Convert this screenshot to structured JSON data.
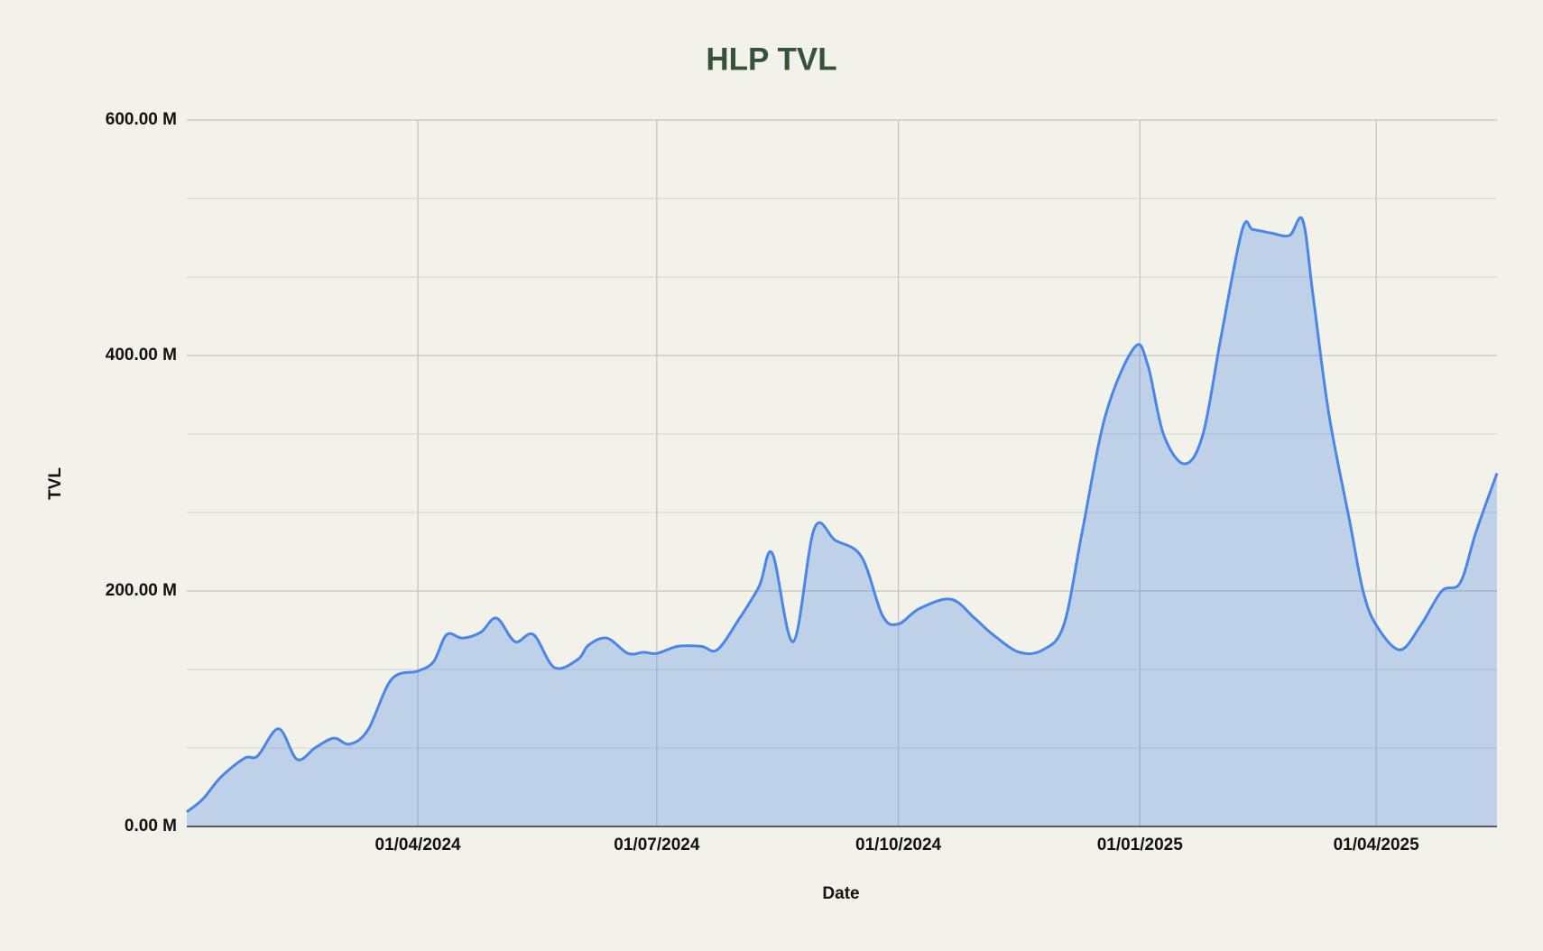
{
  "chart_data": {
    "type": "area",
    "title": "HLP TVL",
    "x_label": "Date",
    "y_label": "TVL",
    "color": "#4a86e8",
    "grid": true,
    "minor_grid_per_interval": 2,
    "xlim": [
      "2024-01-04",
      "2025-05-17"
    ],
    "xticks": [
      {
        "value": "2024-04-01",
        "label": "01/04/2024"
      },
      {
        "value": "2024-07-01",
        "label": "01/07/2024"
      },
      {
        "value": "2024-10-01",
        "label": "01/10/2024"
      },
      {
        "value": "2025-01-01",
        "label": "01/01/2025"
      },
      {
        "value": "2025-04-01",
        "label": "01/04/2025"
      }
    ],
    "ylim": [
      0,
      600000000
    ],
    "yticks": [
      {
        "value": 0,
        "label": "0.00 M"
      },
      {
        "value": 200000000,
        "label": "200.00 M"
      },
      {
        "value": 400000000,
        "label": "400.00 M"
      },
      {
        "value": 600000000,
        "label": "600.00 M"
      }
    ],
    "x": [
      "2024-01-04",
      "2024-01-10",
      "2024-01-17",
      "2024-01-26",
      "2024-01-31",
      "2024-02-08",
      "2024-02-15",
      "2024-02-22",
      "2024-02-29",
      "2024-03-06",
      "2024-03-13",
      "2024-03-22",
      "2024-04-01",
      "2024-04-07",
      "2024-04-12",
      "2024-04-18",
      "2024-04-25",
      "2024-05-01",
      "2024-05-08",
      "2024-05-15",
      "2024-05-23",
      "2024-06-01",
      "2024-06-05",
      "2024-06-12",
      "2024-06-20",
      "2024-06-26",
      "2024-07-01",
      "2024-07-09",
      "2024-07-18",
      "2024-07-24",
      "2024-08-01",
      "2024-08-09",
      "2024-08-14",
      "2024-08-22",
      "2024-08-30",
      "2024-09-07",
      "2024-09-17",
      "2024-09-25",
      "2024-10-01",
      "2024-10-09",
      "2024-10-21",
      "2024-10-30",
      "2024-11-06",
      "2024-11-16",
      "2024-11-25",
      "2024-12-03",
      "2024-12-10",
      "2024-12-19",
      "2024-12-30",
      "2025-01-04",
      "2025-01-10",
      "2025-01-18",
      "2025-01-25",
      "2025-02-01",
      "2025-02-09",
      "2025-02-13",
      "2025-02-20",
      "2025-02-27",
      "2025-03-04",
      "2025-03-08",
      "2025-03-14",
      "2025-03-22",
      "2025-03-27",
      "2025-04-01",
      "2025-04-10",
      "2025-04-18",
      "2025-04-26",
      "2025-05-03",
      "2025-05-09",
      "2025-05-17"
    ],
    "values": [
      12500000,
      23000000,
      42000000,
      58000000,
      60000000,
      83000000,
      57000000,
      67000000,
      75000000,
      70000000,
      82000000,
      125000000,
      132000000,
      140000000,
      163000000,
      160000000,
      165000000,
      177000000,
      157000000,
      163000000,
      135000000,
      142000000,
      154000000,
      160000000,
      147000000,
      148000000,
      147000000,
      153000000,
      153000000,
      150000000,
      175000000,
      204000000,
      232000000,
      157000000,
      253000000,
      243000000,
      229000000,
      179000000,
      172000000,
      185000000,
      193000000,
      177000000,
      163000000,
      148000000,
      150000000,
      171000000,
      250000000,
      350000000,
      407000000,
      392000000,
      333000000,
      308000000,
      333000000,
      417000000,
      507000000,
      507000000,
      504000000,
      502000000,
      515000000,
      450000000,
      350000000,
      258000000,
      200000000,
      171000000,
      150000000,
      171000000,
      200000000,
      207000000,
      250000000,
      300000000
    ]
  }
}
